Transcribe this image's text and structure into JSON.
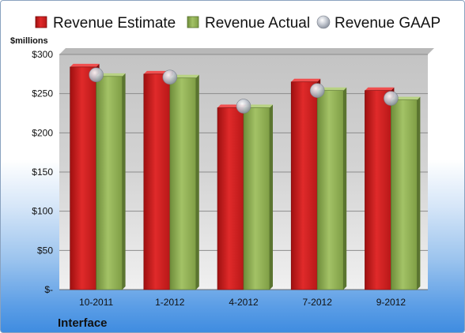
{
  "chart_data": {
    "type": "bar",
    "title": "",
    "ylabel": "$millions",
    "xlabel": "",
    "caption": "Interface",
    "categories": [
      "10-2011",
      "1-2012",
      "4-2012",
      "7-2012",
      "9-2012"
    ],
    "series": [
      {
        "name": "Revenue Estimate",
        "kind": "bar",
        "color": "#d42020",
        "values": [
          284,
          275,
          232,
          265,
          254
        ]
      },
      {
        "name": "Revenue Actual",
        "kind": "bar",
        "color": "#8fb055",
        "values": [
          272,
          270,
          232,
          254,
          242
        ]
      },
      {
        "name": "Revenue GAAP",
        "kind": "marker",
        "color": "#c8cdd6",
        "values": [
          274,
          271,
          234,
          254,
          244
        ]
      }
    ],
    "ylim": [
      0,
      300
    ],
    "yticks": [
      0,
      50,
      100,
      150,
      200,
      250,
      300
    ],
    "ytick_labels": [
      "$-",
      "$50",
      "$100",
      "$150",
      "$200",
      "$250",
      "$300"
    ],
    "grid": true,
    "legend_position": "top"
  }
}
